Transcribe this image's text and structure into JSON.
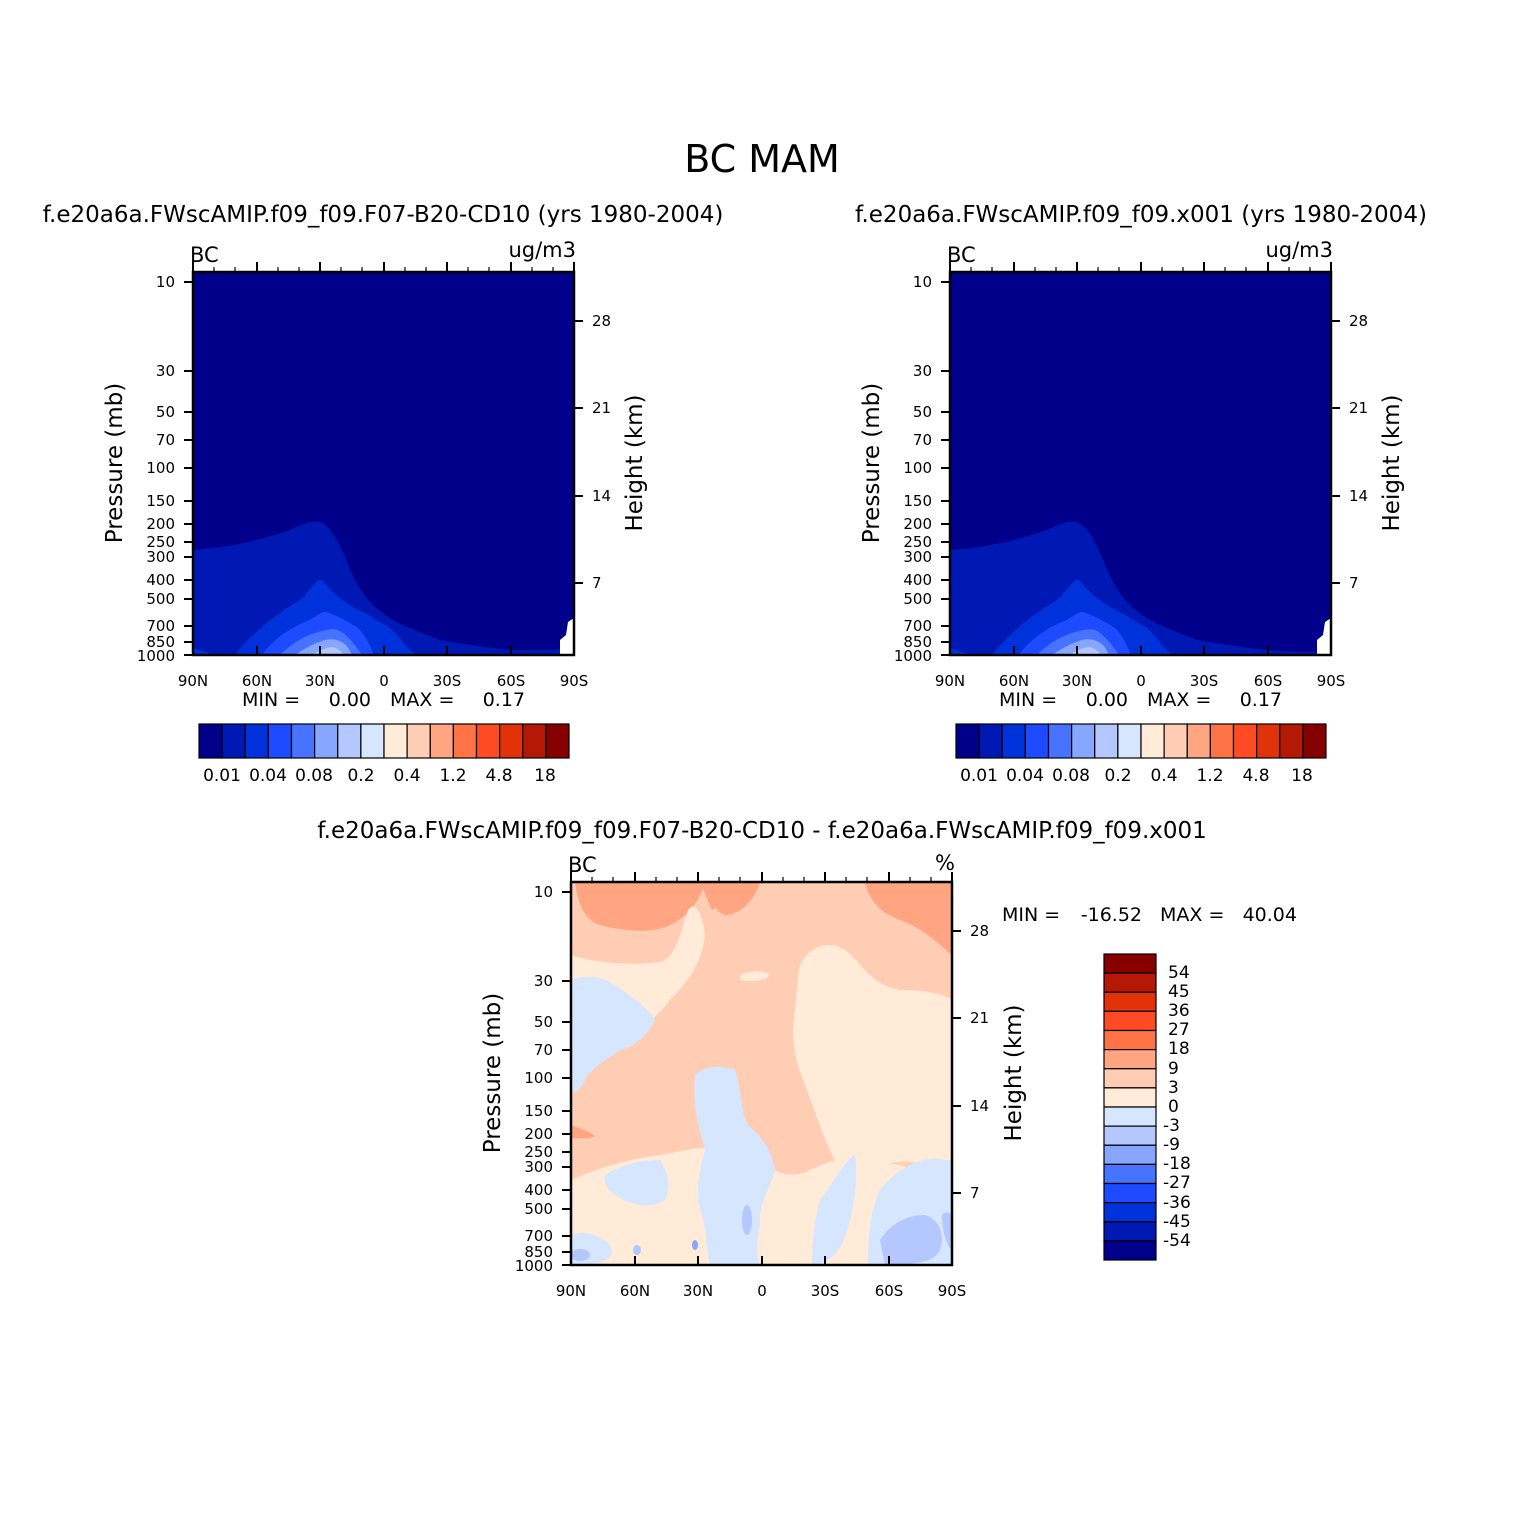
{
  "figure": {
    "title": "BC  MAM"
  },
  "colors": {
    "cb_left": [
      "#00008b",
      "#0019b4",
      "#0032dc",
      "#1e4bff",
      "#4673ff",
      "#87a6ff",
      "#b4c8ff",
      "#d7e6ff",
      "#ffebd7",
      "#ffcdb4",
      "#ffa582",
      "#ff7346",
      "#ff4b23",
      "#e1320a",
      "#b41905",
      "#870000"
    ],
    "cb_right": [
      "#00008b",
      "#0019b4",
      "#0032dc",
      "#1e4bff",
      "#4673ff",
      "#87a6ff",
      "#b4c8ff",
      "#d7e6ff",
      "#ffebd7",
      "#ffcdb4",
      "#ffa582",
      "#ff7346",
      "#ff4b23",
      "#e1320a",
      "#b41905",
      "#870000"
    ]
  },
  "chart_data": [
    {
      "type": "heatmap",
      "title": "f.e20a6a.FWscAMIP.f09_f09.F07-B20-CD10 (yrs 1980-2004)",
      "variable": "BC",
      "units": "ug/m3",
      "xlabel": "",
      "ylabel": "Pressure (mb)",
      "ylabel_right": "Height (km)",
      "x_ticks": [
        "90N",
        "60N",
        "30N",
        "0",
        "30S",
        "60S",
        "90S"
      ],
      "y_ticks": [
        10,
        30,
        50,
        70,
        100,
        150,
        200,
        250,
        300,
        400,
        500,
        700,
        850,
        1000
      ],
      "y_right_ticks": [
        28,
        21,
        14,
        7
      ],
      "y_scale": "log",
      "ylim": [
        1000,
        10
      ],
      "min_label": "MIN =",
      "min_value": "0.00",
      "max_label": "MAX =",
      "max_value": "0.17",
      "colorbar_labels": [
        "0.01",
        "0.04",
        "0.08",
        "0.2",
        "0.4",
        "1.2",
        "4.8",
        "18"
      ]
    },
    {
      "type": "heatmap",
      "title": "f.e20a6a.FWscAMIP.f09_f09.x001 (yrs 1980-2004)",
      "variable": "BC",
      "units": "ug/m3",
      "xlabel": "",
      "ylabel": "Pressure (mb)",
      "ylabel_right": "Height (km)",
      "x_ticks": [
        "90N",
        "60N",
        "30N",
        "0",
        "30S",
        "60S",
        "90S"
      ],
      "y_ticks": [
        10,
        30,
        50,
        70,
        100,
        150,
        200,
        250,
        300,
        400,
        500,
        700,
        850,
        1000
      ],
      "y_right_ticks": [
        28,
        21,
        14,
        7
      ],
      "y_scale": "log",
      "ylim": [
        1000,
        10
      ],
      "min_label": "MIN =",
      "min_value": "0.00",
      "max_label": "MAX =",
      "max_value": "0.17",
      "colorbar_labels": [
        "0.01",
        "0.04",
        "0.08",
        "0.2",
        "0.4",
        "1.2",
        "4.8",
        "18"
      ]
    },
    {
      "type": "heatmap",
      "title": "f.e20a6a.FWscAMIP.f09_f09.F07-B20-CD10 - f.e20a6a.FWscAMIP.f09_f09.x001",
      "variable": "BC",
      "units": "%",
      "xlabel": "",
      "ylabel": "Pressure (mb)",
      "ylabel_right": "Height (km)",
      "x_ticks": [
        "90N",
        "60N",
        "30N",
        "0",
        "30S",
        "60S",
        "90S"
      ],
      "y_ticks": [
        10,
        30,
        50,
        70,
        100,
        150,
        200,
        250,
        300,
        400,
        500,
        700,
        850,
        1000
      ],
      "y_right_ticks": [
        28,
        21,
        14,
        7
      ],
      "y_scale": "log",
      "ylim": [
        1000,
        10
      ],
      "min_label": "MIN =",
      "min_value": "-16.52",
      "max_label": "MAX =",
      "max_value": "40.04",
      "colorbar_labels": [
        "54",
        "45",
        "36",
        "27",
        "18",
        "9",
        "3",
        "0",
        "-3",
        "-9",
        "-18",
        "-27",
        "-36",
        "-45",
        "-54"
      ]
    }
  ]
}
